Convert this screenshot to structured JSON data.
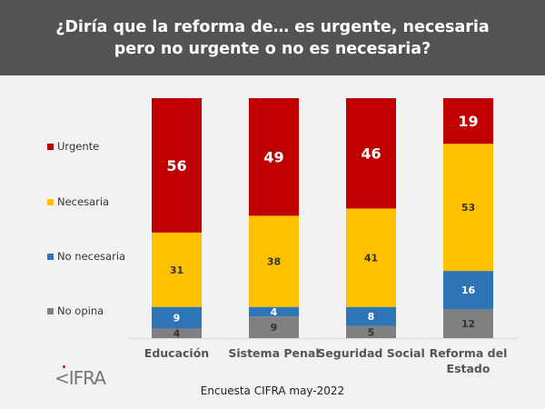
{
  "title": "¿Diría que la reforma de… es urgente, necesaria pero no urgente o no es necesaria?",
  "footer": "Encuesta CIFRA may-2022",
  "logo": "CIFRA",
  "chart_data": {
    "type": "bar",
    "stacked": true,
    "categories": [
      [
        "Educación"
      ],
      [
        "Sistema Penal"
      ],
      [
        "Seguridad Social"
      ],
      [
        "Reforma del",
        "Estado"
      ]
    ],
    "series": [
      {
        "name": "No opina",
        "values": [
          4,
          9,
          5,
          12
        ],
        "color": "#808080",
        "label_color": "#333333"
      },
      {
        "name": "No necesaria",
        "values": [
          9,
          4,
          8,
          16
        ],
        "color": "#2e75b6",
        "label_color": "#ffffff"
      },
      {
        "name": "Necesaria",
        "values": [
          31,
          38,
          41,
          53
        ],
        "color": "#ffc000",
        "label_color": "#333333"
      },
      {
        "name": "Urgente",
        "values": [
          56,
          49,
          46,
          19
        ],
        "color": "#c00000",
        "label_color": "#ffffff"
      }
    ],
    "ylim": [
      0,
      100
    ],
    "legend_position": "left",
    "grid": false
  }
}
